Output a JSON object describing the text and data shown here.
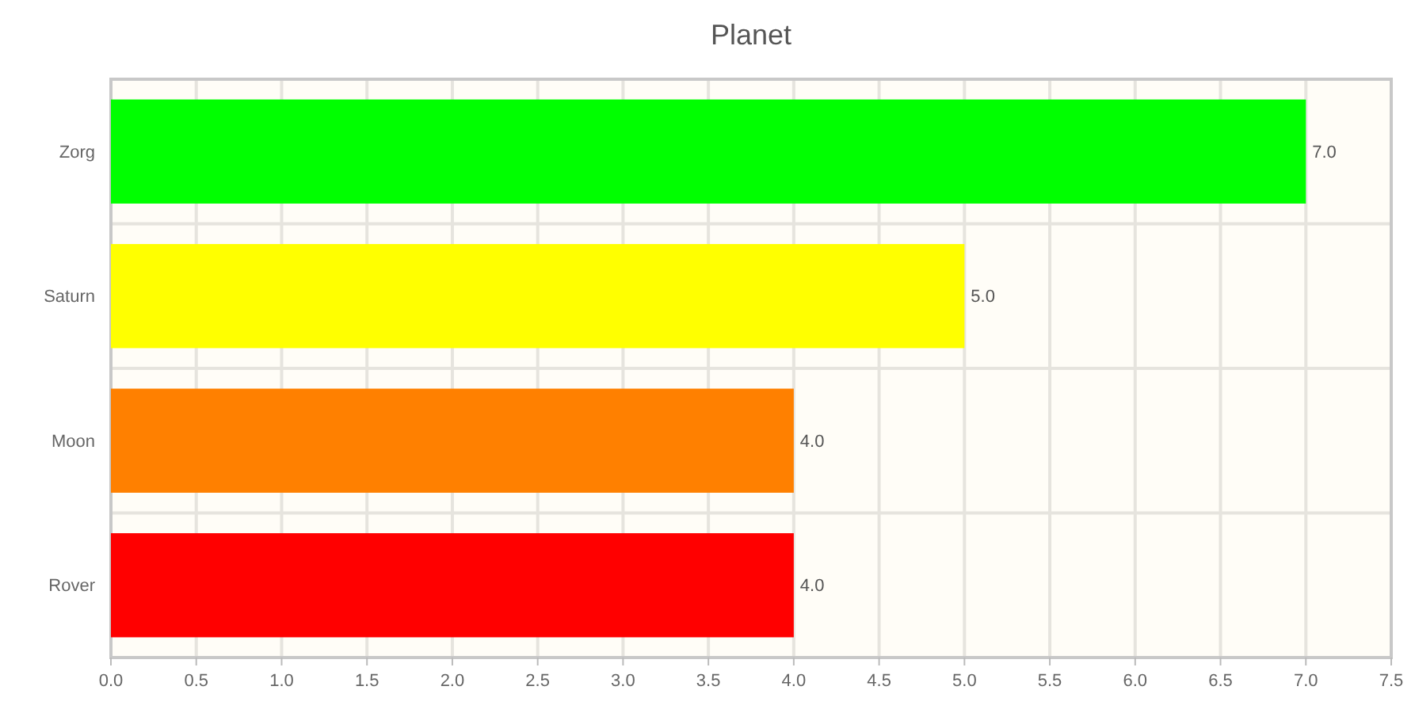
{
  "chart_data": {
    "type": "bar",
    "title": "Planet",
    "orientation": "horizontal",
    "categories": [
      "Zorg",
      "Saturn",
      "Moon",
      "Rover"
    ],
    "values": [
      7,
      5,
      4,
      4
    ],
    "colors": [
      "#00ff00",
      "#ffff00",
      "#ff8000",
      "#ff0000"
    ],
    "value_labels": [
      "7.0",
      "5.0",
      "4.0",
      "4.0"
    ],
    "xlim": [
      0,
      7.5
    ],
    "xticks": [
      {
        "value": 0,
        "label": "0.0"
      },
      {
        "value": 0.5,
        "label": "0.5"
      },
      {
        "value": 1,
        "label": "1.0"
      },
      {
        "value": 1.5,
        "label": "1.5"
      },
      {
        "value": 2,
        "label": "2.0"
      },
      {
        "value": 2.5,
        "label": "2.5"
      },
      {
        "value": 3,
        "label": "3.0"
      },
      {
        "value": 3.5,
        "label": "3.5"
      },
      {
        "value": 4,
        "label": "4.0"
      },
      {
        "value": 4.5,
        "label": "4.5"
      },
      {
        "value": 5,
        "label": "5.0"
      },
      {
        "value": 5.5,
        "label": "5.5"
      },
      {
        "value": 6,
        "label": "6.0"
      },
      {
        "value": 6.5,
        "label": "6.5"
      },
      {
        "value": 7,
        "label": "7.0"
      },
      {
        "value": 7.5,
        "label": "7.5"
      }
    ],
    "grid": true
  }
}
